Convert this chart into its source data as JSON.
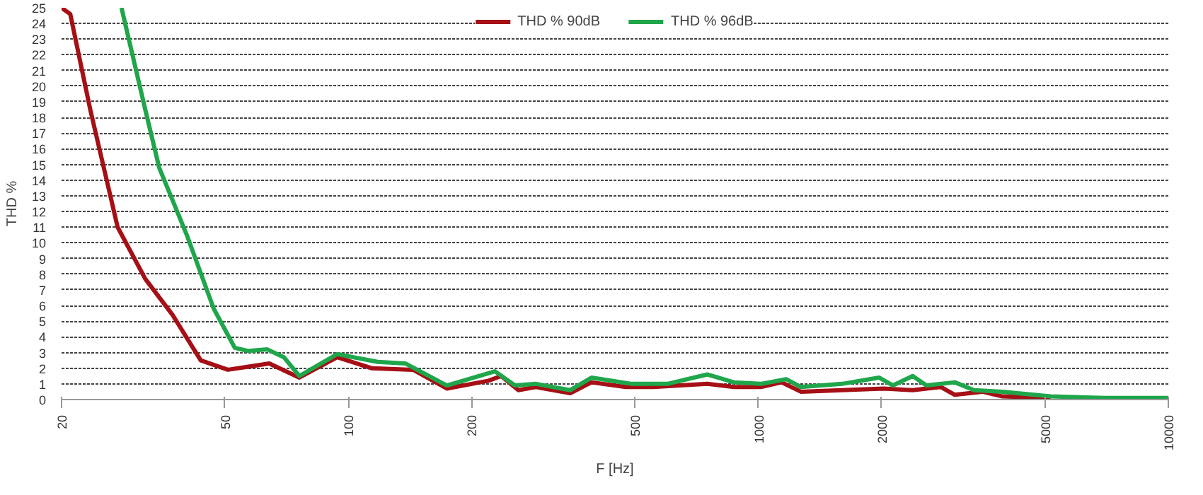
{
  "chart_data": {
    "type": "line",
    "xlabel": "F [Hz]",
    "ylabel": "THD %",
    "log": "x",
    "xlim": [
      20,
      10000
    ],
    "xticks": [
      20,
      50,
      100,
      200,
      500,
      1000,
      2000,
      5000,
      10000
    ],
    "ylim": [
      0,
      25
    ],
    "yticks": [
      0,
      1,
      2,
      3,
      4,
      5,
      6,
      7,
      8,
      9,
      10,
      11,
      12,
      13,
      14,
      15,
      16,
      17,
      18,
      19,
      20,
      21,
      22,
      23,
      24,
      25
    ],
    "grid": "y",
    "legend": "top",
    "line_style": "solid",
    "marker": "none",
    "series": [
      {
        "name": "THD % 90dB",
        "color": "#a50f15",
        "x": [
          20,
          21,
          23.5,
          27.4,
          32,
          37.3,
          43.7,
          50.9,
          57.1,
          64.2,
          76,
          94,
          114,
          144,
          174,
          220,
          236,
          260,
          287,
          348,
          392,
          475,
          555,
          752,
          872,
          1015,
          1140,
          1270,
          1600,
          2020,
          2380,
          2790,
          3015,
          3520,
          3940,
          5165
        ],
        "values": [
          25,
          24.6,
          18.5,
          11,
          7.7,
          5.4,
          2.5,
          1.9,
          2.1,
          2.3,
          1.4,
          2.7,
          2.0,
          1.9,
          0.7,
          1.2,
          1.5,
          0.6,
          0.8,
          0.4,
          1.1,
          0.8,
          0.8,
          1.0,
          0.8,
          0.8,
          1.1,
          0.5,
          0.6,
          0.7,
          0.6,
          0.8,
          0.3,
          0.5,
          0.2,
          0.1
        ]
      },
      {
        "name": "THD % 96dB",
        "color": "#1fa64b",
        "x": [
          28,
          32,
          34.6,
          40.4,
          47,
          52.9,
          57.1,
          63.5,
          69.7,
          76,
          94,
          118,
          138,
          174,
          228,
          255,
          287,
          348,
          392,
          492,
          600,
          752,
          872,
          1015,
          1170,
          1270,
          1600,
          1970,
          2130,
          2380,
          2570,
          3015,
          3360,
          3940,
          5165,
          7000,
          10000
        ],
        "values": [
          25,
          18.5,
          14.8,
          10.5,
          5.8,
          3.3,
          3.1,
          3.2,
          2.7,
          1.5,
          2.9,
          2.4,
          2.3,
          0.9,
          1.8,
          0.9,
          1.0,
          0.6,
          1.4,
          1.0,
          1.0,
          1.6,
          1.1,
          1.0,
          1.3,
          0.8,
          1.0,
          1.4,
          0.9,
          1.5,
          0.9,
          1.1,
          0.6,
          0.5,
          0.2,
          0.1,
          0.1
        ]
      }
    ]
  }
}
